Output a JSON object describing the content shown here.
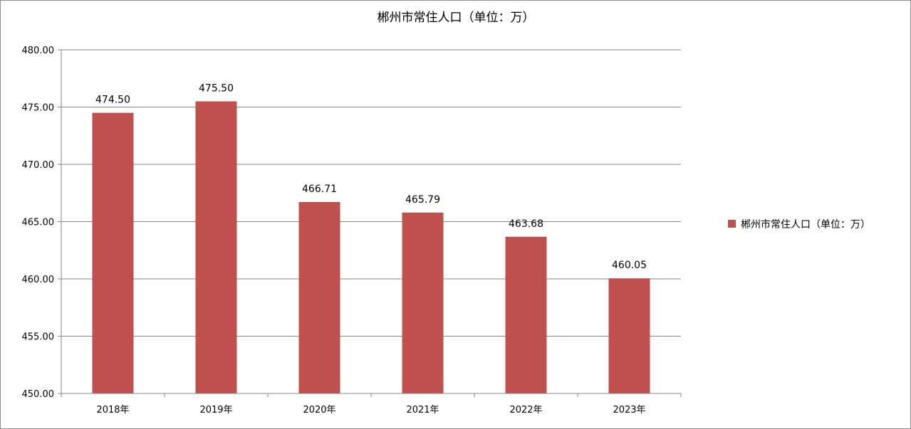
{
  "chart_data": {
    "type": "bar",
    "title": "郴州市常住人口（单位：万）",
    "categories": [
      "2018年",
      "2019年",
      "2020年",
      "2021年",
      "2022年",
      "2023年"
    ],
    "series": [
      {
        "name": "郴州市常住人口（单位：万）",
        "values": [
          474.5,
          475.5,
          466.71,
          465.79,
          463.68,
          460.05
        ],
        "value_labels": [
          "474.50",
          "475.50",
          "466.71",
          "465.79",
          "463.68",
          "460.05"
        ],
        "color": "#c0504d"
      }
    ],
    "ylim": [
      450,
      480
    ],
    "yticks": [
      "450.00",
      "455.00",
      "460.00",
      "465.00",
      "470.00",
      "475.00",
      "480.00"
    ],
    "grid": true,
    "legend_position": "right"
  }
}
